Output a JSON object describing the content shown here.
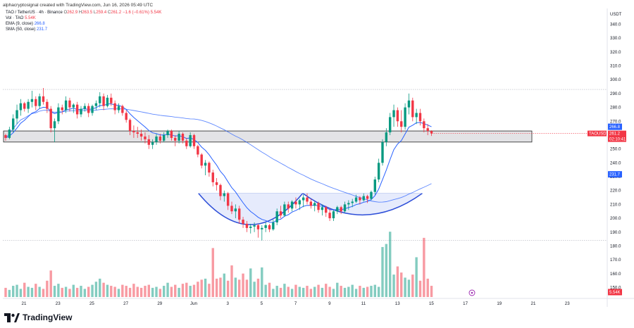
{
  "header": {
    "caption": "alphacryptosignal created with TradingView.com, Jun 16, 2026 05:49 UTC",
    "symbol": "TAO / TetherUS · 4h · Binance",
    "ohlc": {
      "o_label": "O",
      "o": "262.9",
      "h_label": "H",
      "h": "263.5",
      "l_label": "L",
      "l": "259.4",
      "c_label": "C",
      "c": "261.2",
      "chg": "−1.6 (−0.61%)",
      "vol_inline": "5.54K"
    },
    "vol_line": {
      "label": "Vol · TAO",
      "value": "5.54K"
    },
    "ema_line": {
      "label": "EMA (9, close)",
      "value": "266.8"
    },
    "sma_line": {
      "label": "SMA (50, close)",
      "value": "231.7"
    }
  },
  "brand": {
    "name": "TradingView"
  },
  "colors": {
    "up": "#089981",
    "down": "#f23645",
    "ema": "#2962ff",
    "sma": "#2962ff",
    "zone_fill": "#e3e3e6",
    "pattern_fill": "#dde4fb",
    "pattern_line": "#2e4fd8"
  },
  "chart_data": {
    "type": "candlestick",
    "unit_label": "USDT",
    "price_axis_ticks": [
      340.0,
      330.0,
      320.0,
      310.0,
      300.0,
      290.0,
      280.0,
      270.0,
      260.0,
      250.0,
      240.0,
      230.0,
      220.0,
      210.0,
      200.0,
      190.0,
      180.0,
      170.0,
      160.0,
      150.0
    ],
    "price_axis_labels": [
      "340.0",
      "330.0",
      "320.0",
      "310.0",
      "300.0",
      "290.0",
      "280.0",
      "270.0",
      "260.0",
      "250.0",
      "240.0",
      "230.0",
      "220.0",
      "210.0",
      "200.0",
      "190.0",
      "180.0",
      "170.0",
      "160.0",
      "150.0"
    ],
    "date_labels": [
      "21",
      "23",
      "25",
      "27",
      "29",
      "Jun",
      "3",
      "5",
      "7",
      "9",
      "11",
      "13",
      "15",
      "17",
      "19",
      "21",
      "23"
    ],
    "last_price_tag": {
      "symbol": "TAOUSDT",
      "price": "261.2",
      "countdown": "02:10:41"
    },
    "ema_tag": "266.8",
    "sma_tag": "231.7",
    "volume_tag": "5.54K",
    "support_zone": {
      "low": 255,
      "high": 263
    },
    "candles": [
      [
        260,
        261,
        256,
        258
      ],
      [
        258,
        266,
        257,
        264
      ],
      [
        264,
        275,
        262,
        272
      ],
      [
        272,
        282,
        268,
        278
      ],
      [
        278,
        286,
        274,
        283
      ],
      [
        283,
        284,
        277,
        279
      ],
      [
        279,
        286,
        276,
        284
      ],
      [
        284,
        292,
        280,
        286
      ],
      [
        286,
        288,
        278,
        281
      ],
      [
        281,
        290,
        279,
        288
      ],
      [
        288,
        294,
        282,
        284
      ],
      [
        284,
        286,
        276,
        279
      ],
      [
        279,
        281,
        262,
        265
      ],
      [
        265,
        272,
        255,
        270
      ],
      [
        270,
        283,
        268,
        280
      ],
      [
        280,
        282,
        275,
        278
      ],
      [
        278,
        288,
        276,
        285
      ],
      [
        285,
        287,
        277,
        280
      ],
      [
        280,
        283,
        276,
        282
      ],
      [
        282,
        284,
        272,
        275
      ],
      [
        275,
        281,
        273,
        279
      ],
      [
        279,
        283,
        277,
        281
      ],
      [
        281,
        283,
        273,
        276
      ],
      [
        276,
        282,
        274,
        281
      ],
      [
        281,
        285,
        278,
        283
      ],
      [
        283,
        291,
        280,
        288
      ],
      [
        288,
        290,
        278,
        281
      ],
      [
        281,
        289,
        280,
        287
      ],
      [
        287,
        290,
        281,
        283
      ],
      [
        283,
        285,
        275,
        278
      ],
      [
        278,
        283,
        276,
        281
      ],
      [
        281,
        282,
        274,
        276
      ],
      [
        276,
        278,
        269,
        271
      ],
      [
        271,
        272,
        260,
        263
      ],
      [
        263,
        267,
        258,
        262
      ],
      [
        262,
        266,
        258,
        261
      ],
      [
        261,
        264,
        256,
        259
      ],
      [
        259,
        262,
        254,
        257
      ],
      [
        257,
        260,
        250,
        253
      ],
      [
        253,
        257,
        250,
        255
      ],
      [
        255,
        261,
        253,
        259
      ],
      [
        259,
        261,
        254,
        256
      ],
      [
        256,
        262,
        255,
        260
      ],
      [
        260,
        264,
        258,
        263
      ],
      [
        263,
        264,
        256,
        258
      ],
      [
        258,
        260,
        252,
        256
      ],
      [
        256,
        263,
        254,
        261
      ],
      [
        261,
        262,
        254,
        256
      ],
      [
        256,
        258,
        250,
        252
      ],
      [
        252,
        262,
        251,
        260
      ],
      [
        260,
        261,
        250,
        252
      ],
      [
        252,
        253,
        244,
        246
      ],
      [
        246,
        247,
        236,
        238
      ],
      [
        238,
        242,
        231,
        240
      ],
      [
        240,
        241,
        230,
        233
      ],
      [
        233,
        235,
        223,
        226
      ],
      [
        226,
        229,
        220,
        224
      ],
      [
        224,
        225,
        213,
        216
      ],
      [
        216,
        220,
        212,
        218
      ],
      [
        218,
        219,
        206,
        209
      ],
      [
        209,
        212,
        203,
        205
      ],
      [
        205,
        210,
        200,
        207
      ],
      [
        207,
        209,
        196,
        199
      ],
      [
        199,
        201,
        193,
        196
      ],
      [
        196,
        198,
        190,
        193
      ],
      [
        193,
        196,
        189,
        194
      ],
      [
        194,
        197,
        190,
        195
      ],
      [
        195,
        196,
        186,
        192
      ],
      [
        192,
        195,
        184,
        193
      ],
      [
        193,
        197,
        190,
        195
      ],
      [
        195,
        196,
        190,
        192
      ],
      [
        192,
        199,
        191,
        197
      ],
      [
        197,
        207,
        195,
        205
      ],
      [
        205,
        209,
        200,
        202
      ],
      [
        202,
        212,
        201,
        210
      ],
      [
        210,
        212,
        204,
        207
      ],
      [
        207,
        213,
        205,
        212
      ],
      [
        212,
        215,
        207,
        210
      ],
      [
        210,
        214,
        206,
        213
      ],
      [
        213,
        217,
        208,
        215
      ],
      [
        215,
        218,
        210,
        212
      ],
      [
        212,
        214,
        207,
        209
      ],
      [
        209,
        212,
        205,
        211
      ],
      [
        211,
        212,
        204,
        206
      ],
      [
        206,
        210,
        202,
        208
      ],
      [
        208,
        209,
        201,
        204
      ],
      [
        204,
        207,
        198,
        200
      ],
      [
        200,
        206,
        198,
        205
      ],
      [
        205,
        209,
        203,
        208
      ],
      [
        208,
        209,
        203,
        205
      ],
      [
        205,
        212,
        204,
        210
      ],
      [
        210,
        213,
        206,
        211
      ],
      [
        211,
        214,
        208,
        212
      ],
      [
        212,
        217,
        211,
        215
      ],
      [
        215,
        216,
        210,
        213
      ],
      [
        213,
        218,
        212,
        216
      ],
      [
        216,
        217,
        211,
        214
      ],
      [
        214,
        220,
        213,
        219
      ],
      [
        219,
        230,
        217,
        228
      ],
      [
        228,
        243,
        226,
        240
      ],
      [
        240,
        257,
        238,
        255
      ],
      [
        255,
        265,
        252,
        262
      ],
      [
        262,
        276,
        260,
        273
      ],
      [
        273,
        282,
        266,
        278
      ],
      [
        278,
        280,
        266,
        270
      ],
      [
        270,
        278,
        262,
        266
      ],
      [
        266,
        283,
        264,
        280
      ],
      [
        280,
        290,
        275,
        285
      ],
      [
        285,
        287,
        270,
        273
      ],
      [
        273,
        279,
        268,
        276
      ],
      [
        276,
        279,
        267,
        270
      ],
      [
        270,
        272,
        262,
        265
      ],
      [
        265,
        268,
        260,
        263
      ],
      [
        262.9,
        263.5,
        259.4,
        261.2
      ]
    ],
    "volumes": [
      0.9,
      0.7,
      1.1,
      1.2,
      0.8,
      1.4,
      1.0,
      0.9,
      1.3,
      1.0,
      0.8,
      1.6,
      2.6,
      1.1,
      1.3,
      0.9,
      1.0,
      0.8,
      1.2,
      0.9,
      1.1,
      0.8,
      1.0,
      1.2,
      1.5,
      1.8,
      1.4,
      1.2,
      1.1,
      1.0,
      0.8,
      1.2,
      1.1,
      0.9,
      1.3,
      1.0,
      0.9,
      1.1,
      1.2,
      0.9,
      1.0,
      0.8,
      1.1,
      1.4,
      1.0,
      1.2,
      0.9,
      1.3,
      1.4,
      1.1,
      1.2,
      1.5,
      1.7,
      1.8,
      1.3,
      4.8,
      1.8,
      1.9,
      2.3,
      1.6,
      3.1,
      1.9,
      1.7,
      2.3,
      1.7,
      2.8,
      1.5,
      1.8,
      2.9,
      1.2,
      1.4,
      0.8,
      1.1,
      0.9,
      1.3,
      1.0,
      0.8,
      1.2,
      1.0,
      0.9,
      1.1,
      0.8,
      1.0,
      1.2,
      0.9,
      1.3,
      1.0,
      0.8,
      1.4,
      1.1,
      0.9,
      1.0,
      1.2,
      0.8,
      1.1,
      0.9,
      1.0,
      1.1,
      1.2,
      1.0,
      4.9,
      5.2,
      6.4,
      2.2,
      3.0,
      2.4,
      1.9,
      1.7,
      2.2,
      3.9,
      1.6,
      5.8,
      1.8,
      1.1
    ]
  }
}
